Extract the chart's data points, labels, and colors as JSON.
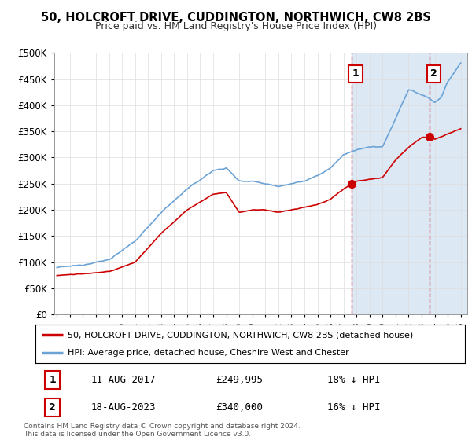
{
  "title": "50, HOLCROFT DRIVE, CUDDINGTON, NORTHWICH, CW8 2BS",
  "subtitle": "Price paid vs. HM Land Registry's House Price Index (HPI)",
  "ylim": [
    0,
    500000
  ],
  "yticks": [
    0,
    50000,
    100000,
    150000,
    200000,
    250000,
    300000,
    350000,
    400000,
    450000,
    500000
  ],
  "sale1_year": 2017.62,
  "sale1_price": 249995,
  "sale2_year": 2023.62,
  "sale2_price": 340000,
  "legend_red": "50, HOLCROFT DRIVE, CUDDINGTON, NORTHWICH, CW8 2BS (detached house)",
  "legend_blue": "HPI: Average price, detached house, Cheshire West and Chester",
  "ann1_date": "11-AUG-2017",
  "ann1_price": "£249,995",
  "ann1_pct": "18% ↓ HPI",
  "ann2_date": "18-AUG-2023",
  "ann2_price": "£340,000",
  "ann2_pct": "16% ↓ HPI",
  "footnote": "Contains HM Land Registry data © Crown copyright and database right 2024.\nThis data is licensed under the Open Government Licence v3.0.",
  "hpi_color": "#6ba3d6",
  "price_color": "#cc0000",
  "shade_color": "#dce9f5",
  "hatch_color": "#c8d8e8",
  "vline_color": "#cc0000",
  "grid_color": "#dddddd",
  "bg_color": "#ffffff"
}
